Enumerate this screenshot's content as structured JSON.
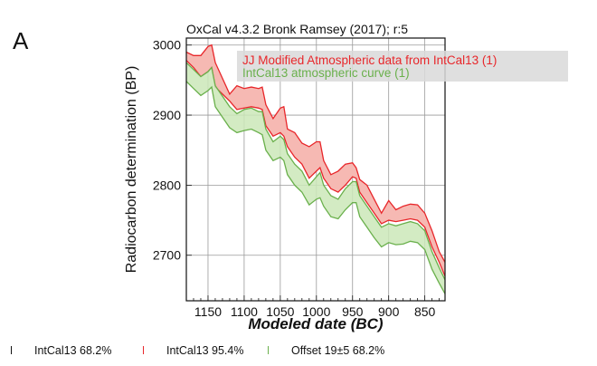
{
  "panel_label": "A",
  "chart_data": {
    "type": "area",
    "title": "OxCal v4.3.2 Bronk Ramsey (2017); r:5",
    "xlabel": "Modeled date (BC)",
    "ylabel": "Radiocarbon determination (BP)",
    "xlim": [
      1180,
      822
    ],
    "ylim": [
      2635,
      3010
    ],
    "x_ticks": [
      1150,
      1100,
      1050,
      1000,
      950,
      900,
      850
    ],
    "y_ticks": [
      2700,
      2800,
      2900,
      3000
    ],
    "grid": true,
    "legend_position": "top-right",
    "colors": {
      "red_series": "#e8262a",
      "green_series": "#6ab04c",
      "red_fill": "#f6b9b3",
      "green_fill": "#cbe8b8",
      "legend_box": "#d9d9d9"
    },
    "x": [
      1180,
      1170,
      1160,
      1150,
      1145,
      1140,
      1120,
      1110,
      1100,
      1090,
      1080,
      1075,
      1070,
      1060,
      1050,
      1045,
      1040,
      1030,
      1020,
      1010,
      1000,
      995,
      990,
      980,
      970,
      960,
      950,
      945,
      940,
      930,
      920,
      910,
      900,
      890,
      880,
      870,
      860,
      850,
      840,
      830,
      822
    ],
    "series": [
      {
        "name": "JJ Modified Atmospheric data from IntCal13 (1)",
        "color": "#e8262a",
        "upper": [
          2990,
          2985,
          2985,
          2998,
          3000,
          2975,
          2930,
          2942,
          2938,
          2940,
          2938,
          2940,
          2915,
          2895,
          2910,
          2912,
          2880,
          2875,
          2860,
          2855,
          2862,
          2862,
          2835,
          2815,
          2820,
          2830,
          2832,
          2825,
          2808,
          2800,
          2780,
          2760,
          2778,
          2765,
          2770,
          2773,
          2772,
          2760,
          2735,
          2705,
          2690
        ],
        "lower": [
          2978,
          2968,
          2955,
          2962,
          2968,
          2940,
          2920,
          2908,
          2910,
          2912,
          2910,
          2908,
          2885,
          2870,
          2875,
          2870,
          2855,
          2840,
          2830,
          2810,
          2820,
          2825,
          2810,
          2795,
          2790,
          2800,
          2812,
          2810,
          2790,
          2775,
          2760,
          2745,
          2750,
          2748,
          2750,
          2752,
          2750,
          2740,
          2712,
          2690,
          2670
        ]
      },
      {
        "name": "IntCal13 atmospheric curve (1)",
        "color": "#6ab04c",
        "upper": [
          2975,
          2965,
          2955,
          2962,
          2968,
          2942,
          2912,
          2902,
          2908,
          2910,
          2905,
          2905,
          2880,
          2862,
          2870,
          2865,
          2845,
          2830,
          2820,
          2800,
          2812,
          2818,
          2800,
          2785,
          2780,
          2795,
          2805,
          2805,
          2785,
          2770,
          2755,
          2740,
          2745,
          2742,
          2745,
          2748,
          2745,
          2735,
          2705,
          2682,
          2665
        ],
        "lower": [
          2948,
          2938,
          2928,
          2935,
          2940,
          2912,
          2882,
          2875,
          2878,
          2880,
          2875,
          2872,
          2850,
          2835,
          2840,
          2835,
          2815,
          2800,
          2790,
          2772,
          2780,
          2782,
          2770,
          2755,
          2752,
          2765,
          2775,
          2775,
          2755,
          2740,
          2725,
          2712,
          2718,
          2715,
          2716,
          2720,
          2718,
          2708,
          2680,
          2660,
          2645
        ]
      }
    ],
    "bottom_legend": [
      {
        "label": "IntCal13 68.2%",
        "color": "#111111"
      },
      {
        "label": "IntCal13 95.4%",
        "color": "#e8262a"
      },
      {
        "label": "Offset 19±5 68.2%",
        "color": "#6ab04c"
      }
    ]
  }
}
